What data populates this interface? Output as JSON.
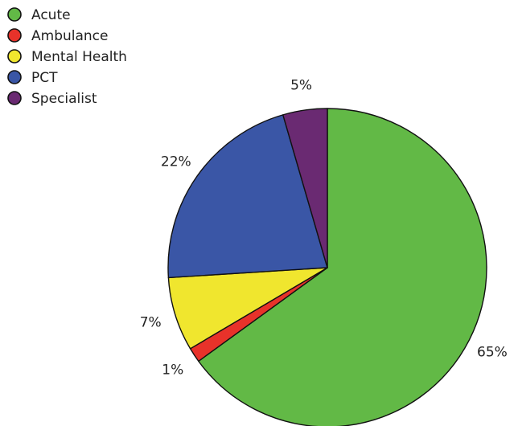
{
  "chart_data": {
    "type": "pie",
    "slices": [
      {
        "label": "Acute",
        "value": 65,
        "value_label": "65%",
        "color": "#62b946"
      },
      {
        "label": "Ambulance",
        "value": 1.5,
        "value_label": "1%",
        "color": "#e8322a"
      },
      {
        "label": "Mental Health",
        "value": 7.5,
        "value_label": "7%",
        "color": "#f0e62e"
      },
      {
        "label": "PCT",
        "value": 21.5,
        "value_label": "22%",
        "color": "#3a56a6"
      },
      {
        "label": "Specialist",
        "value": 4.5,
        "value_label": "5%",
        "color": "#6a2a72"
      }
    ],
    "start_angle_deg": 0,
    "direction": "clockwise",
    "legend_position": "top-left"
  }
}
